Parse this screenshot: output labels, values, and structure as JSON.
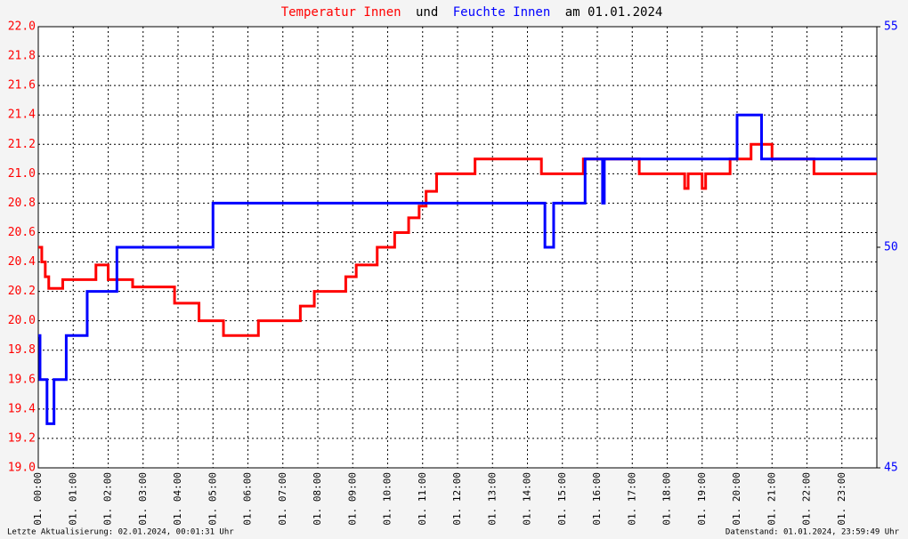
{
  "chart_data": {
    "type": "line",
    "title_parts": [
      {
        "text": "Temperatur Innen",
        "color": "#ff0000"
      },
      {
        "text": "und",
        "color": "#000000"
      },
      {
        "text": "Feuchte Innen",
        "color": "#0000ff"
      },
      {
        "text": "am 01.01.2024",
        "color": "#000000"
      }
    ],
    "footer_left": "Letzte Aktualisierung: 02.01.2024, 00:01:31 Uhr",
    "footer_right": "Datenstand: 01.01.2024, 23:59:49 Uhr",
    "xlim": [
      0,
      24
    ],
    "xticks": [
      {
        "value": 0,
        "label": "01. 00:00"
      },
      {
        "value": 1,
        "label": "01. 01:00"
      },
      {
        "value": 2,
        "label": "01. 02:00"
      },
      {
        "value": 3,
        "label": "01. 03:00"
      },
      {
        "value": 4,
        "label": "01. 04:00"
      },
      {
        "value": 5,
        "label": "01. 05:00"
      },
      {
        "value": 6,
        "label": "01. 06:00"
      },
      {
        "value": 7,
        "label": "01. 07:00"
      },
      {
        "value": 8,
        "label": "01. 08:00"
      },
      {
        "value": 9,
        "label": "01. 09:00"
      },
      {
        "value": 10,
        "label": "01. 10:00"
      },
      {
        "value": 11,
        "label": "01. 11:00"
      },
      {
        "value": 12,
        "label": "01. 12:00"
      },
      {
        "value": 13,
        "label": "01. 13:00"
      },
      {
        "value": 14,
        "label": "01. 14:00"
      },
      {
        "value": 15,
        "label": "01. 15:00"
      },
      {
        "value": 16,
        "label": "01. 16:00"
      },
      {
        "value": 17,
        "label": "01. 17:00"
      },
      {
        "value": 18,
        "label": "01. 18:00"
      },
      {
        "value": 19,
        "label": "01. 19:00"
      },
      {
        "value": 20,
        "label": "01. 20:00"
      },
      {
        "value": 21,
        "label": "01. 21:00"
      },
      {
        "value": 22,
        "label": "01. 22:00"
      },
      {
        "value": 23,
        "label": "01. 23:00"
      }
    ],
    "ylim": [
      19.0,
      22.0
    ],
    "yticks": [
      {
        "value": 19,
        "label": "19.0"
      },
      19.2,
      19.4,
      19.6,
      19.8,
      {
        "value": 20,
        "label": "20.0"
      },
      20.2,
      20.4,
      20.6,
      20.8,
      {
        "value": 21,
        "label": "21.0"
      },
      21.2,
      21.4,
      21.6,
      21.8,
      {
        "value": 22,
        "label": "22.0"
      }
    ],
    "y2lim": [
      45,
      55
    ],
    "y2ticks": [
      45,
      50,
      55
    ],
    "grid": true,
    "series": [
      {
        "name": "Temperatur Innen",
        "color": "#ff0000",
        "axis": "y",
        "x": [
          0,
          0.1,
          0.1,
          0.2,
          0.2,
          0.3,
          0.3,
          0.7,
          0.7,
          1.65,
          1.65,
          2.0,
          2.0,
          2.7,
          2.7,
          3.9,
          3.9,
          4.6,
          4.6,
          5.3,
          5.3,
          6.3,
          6.3,
          7.5,
          7.5,
          7.9,
          7.9,
          8.8,
          8.8,
          9.1,
          9.1,
          9.7,
          9.7,
          10.2,
          10.2,
          10.6,
          10.6,
          10.9,
          10.9,
          11.1,
          11.1,
          11.4,
          11.4,
          12.5,
          12.5,
          14.4,
          14.4,
          15.6,
          15.6,
          17.2,
          17.2,
          18.5,
          18.5,
          18.6,
          18.6,
          19.0,
          19.0,
          19.1,
          19.1,
          19.8,
          19.8,
          20.4,
          20.4,
          21.0,
          21.0,
          22.2,
          22.2,
          24
        ],
        "values": [
          20.5,
          20.5,
          20.4,
          20.4,
          20.3,
          20.3,
          20.22,
          20.22,
          20.28,
          20.28,
          20.38,
          20.38,
          20.28,
          20.28,
          20.23,
          20.23,
          20.12,
          20.12,
          20.0,
          20.0,
          19.9,
          19.9,
          20.0,
          20.0,
          20.1,
          20.1,
          20.2,
          20.2,
          20.3,
          20.3,
          20.38,
          20.38,
          20.5,
          20.5,
          20.6,
          20.6,
          20.7,
          20.7,
          20.78,
          20.78,
          20.88,
          20.88,
          21.0,
          21.0,
          21.1,
          21.1,
          21.0,
          21.0,
          21.1,
          21.1,
          21.0,
          21.0,
          20.9,
          20.9,
          21.0,
          21.0,
          20.9,
          20.9,
          21.0,
          21.0,
          21.1,
          21.1,
          21.2,
          21.2,
          21.1,
          21.1,
          21.0,
          21.0
        ]
      },
      {
        "name": "Feuchte Innen",
        "color": "#0000ff",
        "axis": "y2",
        "x": [
          0,
          0.05,
          0.05,
          0.25,
          0.25,
          0.45,
          0.45,
          0.8,
          0.8,
          1.4,
          1.4,
          2.25,
          2.25,
          5.0,
          5.0,
          14.5,
          14.5,
          14.75,
          14.75,
          15.65,
          15.65,
          16.15,
          16.15,
          16.2,
          16.2,
          20.0,
          20.0,
          20.7,
          20.7,
          24
        ],
        "values": [
          48,
          48,
          47,
          47,
          46,
          46,
          47,
          47,
          48,
          48,
          49,
          49,
          50,
          50,
          51,
          51,
          50,
          50,
          51,
          51,
          52,
          52,
          51,
          51,
          52,
          52,
          53,
          53,
          52,
          52
        ]
      }
    ]
  }
}
